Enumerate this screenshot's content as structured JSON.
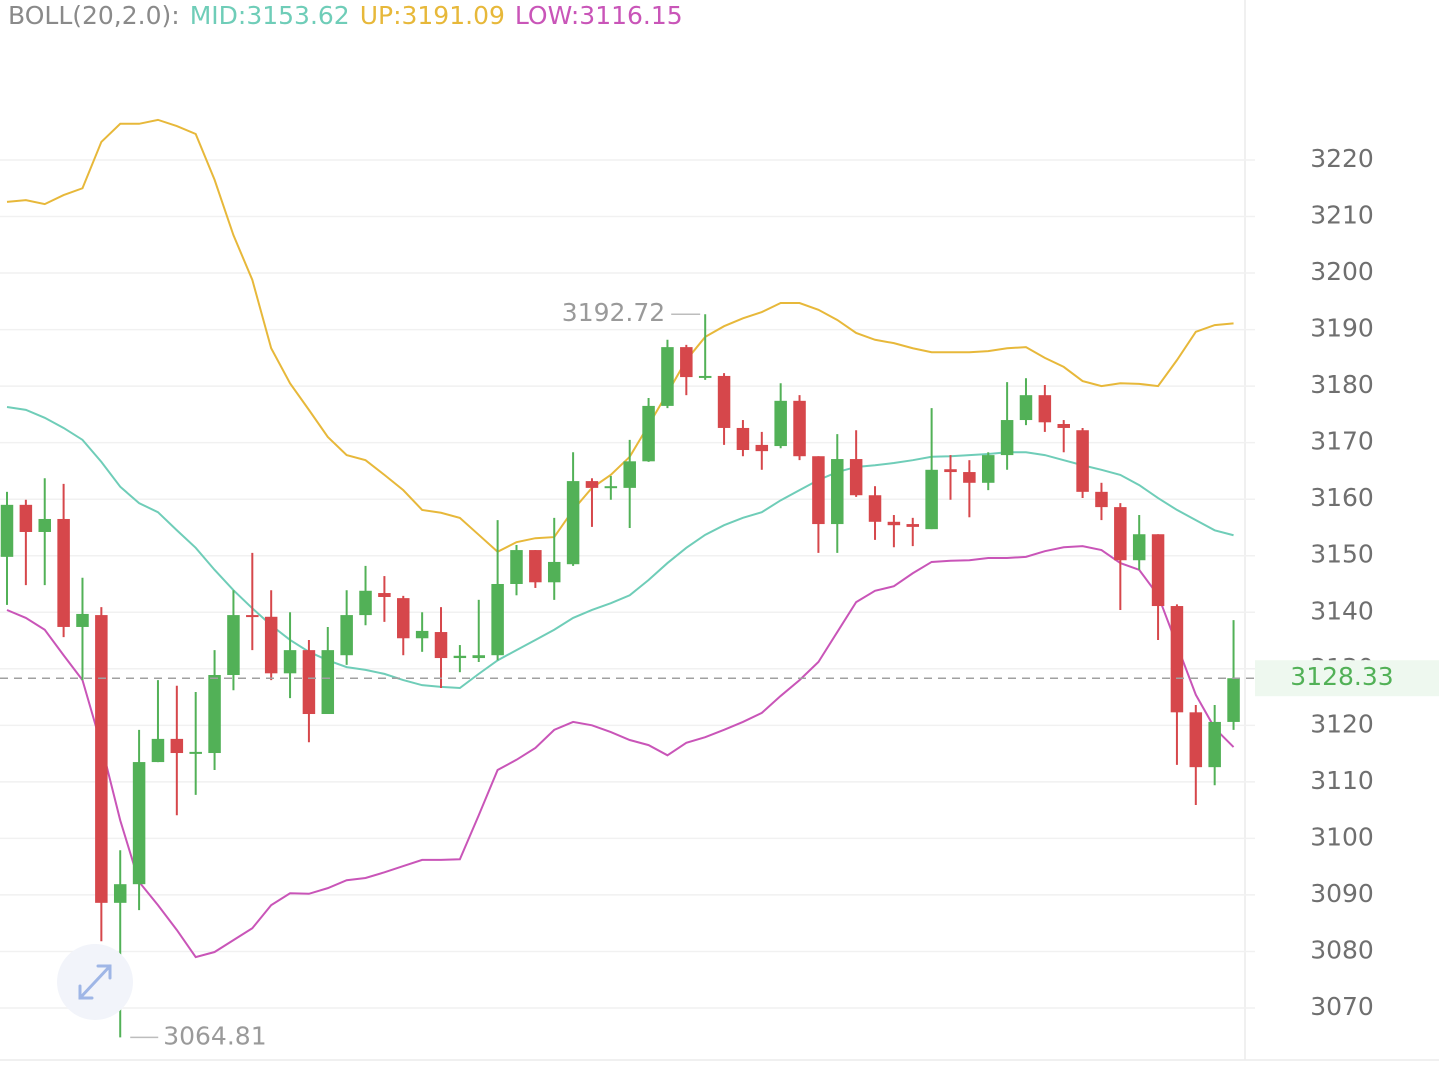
{
  "chart_data": {
    "type": "candlestick",
    "indicator_label": "BOLL(20,2.0):",
    "up_color": "#52b157",
    "down_color": "#d6474b",
    "open": [
      3149.8,
      3159.0,
      3154.2,
      3156.5,
      3137.4,
      3139.5,
      3088.6,
      3091.9,
      3113.5,
      3117.6,
      3115.2,
      3115.1,
      3128.9,
      3139.5,
      3139.2,
      3129.2,
      3133.3,
      3122.0,
      3132.4,
      3139.5,
      3143.4,
      3142.5,
      3135.4,
      3136.5,
      3131.9,
      3131.9,
      3132.4,
      3145.0,
      3151.0,
      3145.3,
      3148.5,
      3163.2,
      3162.0,
      3162.0,
      3166.7,
      3176.5,
      3186.9,
      3181.6,
      3181.8,
      3172.6,
      3169.6,
      3169.4,
      3177.4,
      3167.6,
      3155.6,
      3167.1,
      3160.7,
      3156.0,
      3155.6,
      3154.7,
      3165.3,
      3164.8,
      3162.9,
      3167.8,
      3174.0,
      3178.4,
      3173.3,
      3172.2,
      3161.3,
      3158.6,
      3149.2,
      3153.8,
      3141.1,
      3122.3,
      3112.6,
      3120.6
    ],
    "high": [
      3161.3,
      3159.9,
      3163.7,
      3162.7,
      3146.1,
      3140.9,
      3097.9,
      3119.2,
      3128.0,
      3127.0,
      3125.9,
      3133.3,
      3143.9,
      3150.5,
      3143.9,
      3140.0,
      3135.1,
      3137.4,
      3143.9,
      3148.2,
      3146.4,
      3142.9,
      3140.0,
      3140.9,
      3134.2,
      3142.2,
      3156.3,
      3151.9,
      3151.0,
      3156.7,
      3168.3,
      3163.7,
      3164.1,
      3170.5,
      3177.9,
      3188.2,
      3187.3,
      3192.72,
      3182.3,
      3174.0,
      3171.9,
      3180.5,
      3178.4,
      3167.6,
      3171.5,
      3172.2,
      3162.3,
      3157.2,
      3156.7,
      3176.1,
      3167.8,
      3166.9,
      3168.3,
      3180.7,
      3181.4,
      3180.2,
      3174.0,
      3172.6,
      3162.9,
      3159.3,
      3157.2,
      3153.8,
      3141.4,
      3123.6,
      3123.6,
      3138.6
    ],
    "low": [
      3141.3,
      3144.8,
      3144.8,
      3135.6,
      3128.0,
      3081.8,
      3064.81,
      3087.3,
      3113.5,
      3104.1,
      3107.7,
      3112.1,
      3126.2,
      3133.3,
      3128.0,
      3124.8,
      3117.0,
      3122.0,
      3130.7,
      3137.7,
      3138.3,
      3132.4,
      3133.0,
      3126.6,
      3129.4,
      3131.2,
      3131.5,
      3143.0,
      3144.3,
      3142.2,
      3148.2,
      3155.1,
      3159.9,
      3154.9,
      3166.6,
      3176.1,
      3178.4,
      3181.1,
      3169.6,
      3167.6,
      3165.2,
      3169.0,
      3166.9,
      3150.5,
      3150.5,
      3160.4,
      3152.8,
      3151.5,
      3151.7,
      3154.7,
      3159.9,
      3156.8,
      3161.6,
      3165.2,
      3173.1,
      3171.9,
      3168.3,
      3160.2,
      3156.3,
      3140.4,
      3147.5,
      3135.1,
      3113.0,
      3105.9,
      3109.4,
      3119.2
    ],
    "close": [
      3159.0,
      3154.2,
      3156.5,
      3137.4,
      3139.7,
      3088.6,
      3091.9,
      3113.5,
      3117.6,
      3115.1,
      3115.3,
      3128.9,
      3139.5,
      3139.2,
      3129.2,
      3133.3,
      3122.0,
      3133.3,
      3139.5,
      3143.8,
      3142.7,
      3135.4,
      3136.7,
      3131.9,
      3132.3,
      3132.4,
      3145.0,
      3151.0,
      3145.3,
      3148.9,
      3163.2,
      3162.0,
      3162.3,
      3166.7,
      3176.5,
      3186.9,
      3181.6,
      3181.8,
      3172.6,
      3168.7,
      3168.5,
      3177.4,
      3167.6,
      3155.6,
      3167.1,
      3160.7,
      3156.0,
      3155.4,
      3155.1,
      3165.2,
      3164.8,
      3162.9,
      3167.8,
      3174.0,
      3178.4,
      3173.6,
      3172.6,
      3161.3,
      3158.6,
      3149.2,
      3153.8,
      3141.1,
      3122.3,
      3112.6,
      3120.6,
      3128.33
    ],
    "series": [
      {
        "name": "MID:3153.62",
        "color": "#6fcdb8",
        "values": [
          3176.3,
          3175.8,
          3174.4,
          3172.6,
          3170.5,
          3166.6,
          3162.2,
          3159.3,
          3157.7,
          3154.5,
          3151.4,
          3147.5,
          3143.9,
          3140.7,
          3137.7,
          3135.1,
          3133.0,
          3131.5,
          3130.3,
          3129.8,
          3129.1,
          3128.0,
          3127.1,
          3126.8,
          3126.6,
          3129.1,
          3131.5,
          3133.3,
          3135.1,
          3136.9,
          3139.0,
          3140.4,
          3141.6,
          3143.0,
          3145.7,
          3148.7,
          3151.4,
          3153.7,
          3155.4,
          3156.7,
          3157.7,
          3159.8,
          3161.6,
          3163.4,
          3164.8,
          3165.7,
          3166.0,
          3166.4,
          3166.9,
          3167.5,
          3167.6,
          3167.8,
          3168.0,
          3168.3,
          3168.3,
          3167.8,
          3166.9,
          3166.0,
          3165.2,
          3164.3,
          3162.5,
          3160.2,
          3158.1,
          3156.3,
          3154.5,
          3153.62
        ]
      },
      {
        "name": "UP:3191.09",
        "color": "#e7b83a",
        "values": [
          3212.6,
          3212.9,
          3212.2,
          3213.8,
          3215.0,
          3223.2,
          3226.4,
          3226.4,
          3227.1,
          3226.0,
          3224.6,
          3216.5,
          3206.7,
          3198.8,
          3186.7,
          3180.5,
          3175.8,
          3171.0,
          3167.8,
          3166.9,
          3164.3,
          3161.6,
          3158.1,
          3157.6,
          3156.7,
          3153.7,
          3150.7,
          3152.4,
          3153.1,
          3153.3,
          3158.1,
          3162.0,
          3164.3,
          3167.5,
          3173.1,
          3178.8,
          3184.6,
          3188.7,
          3190.6,
          3192.0,
          3193.1,
          3194.7,
          3194.7,
          3193.5,
          3191.7,
          3189.4,
          3188.2,
          3187.6,
          3186.7,
          3186.0,
          3186.0,
          3186.0,
          3186.2,
          3186.7,
          3186.9,
          3185.0,
          3183.4,
          3180.9,
          3180.0,
          3180.5,
          3180.4,
          3180.0,
          3184.6,
          3189.6,
          3190.8,
          3191.09
        ]
      },
      {
        "name": "LOW:3116.15",
        "color": "#c955b8",
        "values": [
          3140.4,
          3139.0,
          3136.9,
          3132.4,
          3128.0,
          3116.5,
          3103.2,
          3092.3,
          3088.2,
          3083.8,
          3079.0,
          3079.9,
          3082.0,
          3084.1,
          3088.2,
          3090.3,
          3090.2,
          3091.2,
          3092.6,
          3093.0,
          3094.0,
          3095.1,
          3096.2,
          3096.2,
          3096.3,
          3104.1,
          3112.1,
          3113.9,
          3116.0,
          3119.2,
          3120.6,
          3120.0,
          3118.8,
          3117.4,
          3116.5,
          3114.7,
          3116.9,
          3117.9,
          3119.2,
          3120.6,
          3122.2,
          3125.2,
          3128.0,
          3131.2,
          3136.5,
          3141.8,
          3143.8,
          3144.6,
          3146.9,
          3148.9,
          3149.1,
          3149.2,
          3149.6,
          3149.6,
          3149.8,
          3150.8,
          3151.5,
          3151.7,
          3151.0,
          3148.7,
          3147.5,
          3143.0,
          3134.2,
          3125.4,
          3119.5,
          3116.15
        ]
      }
    ],
    "ylim": [
      3060.8,
      3248.3
    ],
    "yticks": [
      3070,
      3080,
      3090,
      3100,
      3110,
      3120,
      3130,
      3140,
      3150,
      3160,
      3170,
      3180,
      3190,
      3200,
      3210,
      3220
    ],
    "grid": true
  }
}
